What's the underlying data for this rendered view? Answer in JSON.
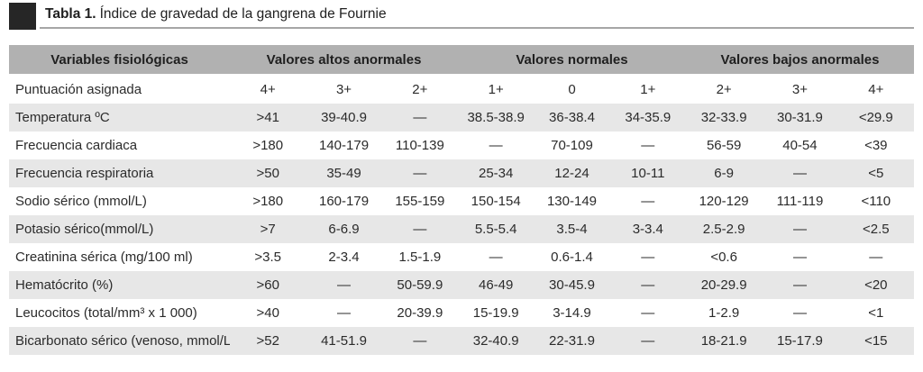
{
  "title": {
    "prefix": "Tabla 1.",
    "text": "Índice de gravedad de la gangrena de Fournie"
  },
  "table": {
    "header": {
      "variables": "Variables fisiológicas",
      "groups": [
        "Valores altos anormales",
        "Valores normales",
        "Valores bajos anormales"
      ]
    },
    "rows": [
      {
        "label": "Puntuación asignada",
        "values": [
          "4+",
          "3+",
          "2+",
          "1+",
          "0",
          "1+",
          "2+",
          "3+",
          "4+"
        ]
      },
      {
        "label": "Temperatura ºC",
        "values": [
          ">41",
          "39-40.9",
          "—",
          "38.5-38.9",
          "36-38.4",
          "34-35.9",
          "32-33.9",
          "30-31.9",
          "<29.9"
        ]
      },
      {
        "label": "Frecuencia cardiaca",
        "values": [
          ">180",
          "140-179",
          "110-139",
          "—",
          "70-109",
          "—",
          "56-59",
          "40-54",
          "<39"
        ]
      },
      {
        "label": "Frecuencia respiratoria",
        "values": [
          ">50",
          "35-49",
          "—",
          "25-34",
          "12-24",
          "10-11",
          "6-9",
          "—",
          "<5"
        ]
      },
      {
        "label": "Sodio sérico (mmol/L)",
        "values": [
          ">180",
          "160-179",
          "155-159",
          "150-154",
          "130-149",
          "—",
          "120-129",
          "111-119",
          "<110"
        ]
      },
      {
        "label": "Potasio sérico(mmol/L)",
        "values": [
          ">7",
          "6-6.9",
          "—",
          "5.5-5.4",
          "3.5-4",
          "3-3.4",
          "2.5-2.9",
          "—",
          "<2.5"
        ]
      },
      {
        "label": "Creatinina sérica (mg/100 ml)",
        "values": [
          ">3.5",
          "2-3.4",
          "1.5-1.9",
          "—",
          "0.6-1.4",
          "—",
          "<0.6",
          "—",
          "—"
        ]
      },
      {
        "label": "Hematócrito (%)",
        "values": [
          ">60",
          "—",
          "50-59.9",
          "46-49",
          "30-45.9",
          "—",
          "20-29.9",
          "—",
          "<20"
        ]
      },
      {
        "label": "Leucocitos (total/mm³ x 1 000)",
        "values": [
          ">40",
          "—",
          "20-39.9",
          "15-19.9",
          "3-14.9",
          "—",
          "1-2.9",
          "—",
          "<1"
        ]
      },
      {
        "label": "Bicarbonato sérico (venoso, mmol/L)",
        "values": [
          ">52",
          "41-51.9",
          "—",
          "32-40.9",
          "22-31.9",
          "—",
          "18-21.9",
          "15-17.9",
          "<15"
        ]
      }
    ]
  },
  "colors": {
    "header_band": "#b1b1b1",
    "row_stripe": "#e7e7e7",
    "title_square": "#262626",
    "rule_line": "#a6a6a6",
    "text": "#2b2b2b"
  }
}
